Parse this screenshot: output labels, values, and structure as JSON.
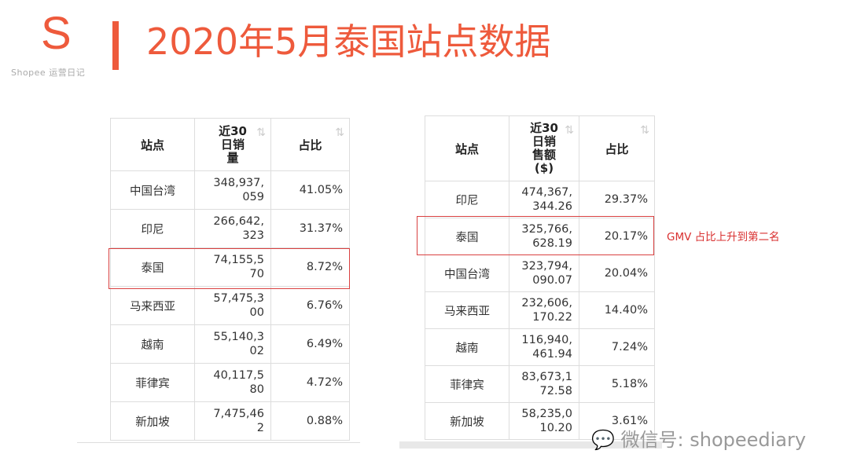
{
  "logo": {
    "letter": "S",
    "subtitle": "Shopee 运营日记"
  },
  "title": "2020年5月泰国站点数据",
  "left_table": {
    "headers": [
      "站点",
      "近30\n日销\n量",
      "占比"
    ],
    "rows": [
      {
        "site": "中国台湾",
        "value": "348,937,\n059",
        "pct": "41.05%"
      },
      {
        "site": "印尼",
        "value": "266,642,\n323",
        "pct": "31.37%"
      },
      {
        "site": "泰国",
        "value": "74,155,5\n70",
        "pct": "8.72%"
      },
      {
        "site": "马来西亚",
        "value": "57,475,3\n00",
        "pct": "6.76%"
      },
      {
        "site": "越南",
        "value": "55,140,3\n02",
        "pct": "6.49%"
      },
      {
        "site": "菲律宾",
        "value": "40,117,5\n80",
        "pct": "4.72%"
      },
      {
        "site": "新加坡",
        "value": "7,475,46\n2",
        "pct": "0.88%"
      }
    ]
  },
  "right_table": {
    "headers": [
      "站点",
      "近30\n日销\n售额\n($)",
      "占比"
    ],
    "rows": [
      {
        "site": "印尼",
        "value": "474,367,\n344.26",
        "pct": "29.37%"
      },
      {
        "site": "泰国",
        "value": "325,766,\n628.19",
        "pct": "20.17%"
      },
      {
        "site": "中国台湾",
        "value": "323,794,\n090.07",
        "pct": "20.04%"
      },
      {
        "site": "马来西亚",
        "value": "232,606,\n170.22",
        "pct": "14.40%"
      },
      {
        "site": "越南",
        "value": "116,940,\n461.94",
        "pct": "7.24%"
      },
      {
        "site": "菲律宾",
        "value": "83,673,1\n72.58",
        "pct": "5.18%"
      },
      {
        "site": "新加坡",
        "value": "58,235,0\n10.20",
        "pct": "3.61%"
      }
    ]
  },
  "annotation": "GMV 占比上升到第二名",
  "watermark": "微信号: shopeediary",
  "colors": {
    "accent": "#ee5a3c",
    "highlight": "#d94040"
  }
}
